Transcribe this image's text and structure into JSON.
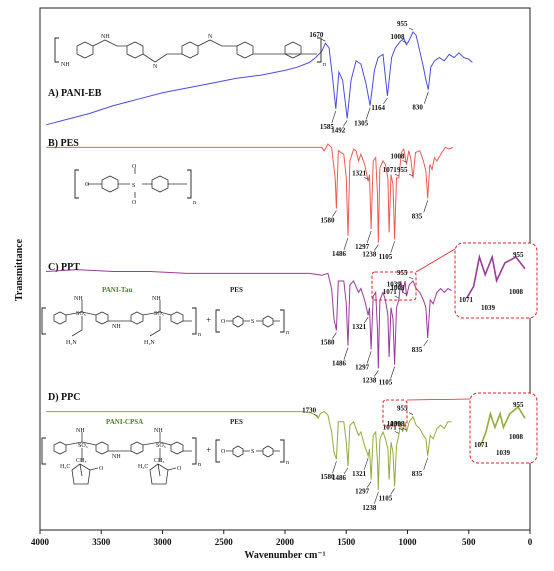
{
  "chart_data": {
    "type": "line",
    "xlabel": "Wavenumber cm⁻¹",
    "ylabel": "Transmittance",
    "xlim": [
      4000,
      0
    ],
    "x_ticks": [
      4000,
      3500,
      3000,
      2500,
      2000,
      1500,
      1000,
      500,
      0
    ],
    "x_reversed": true,
    "grid": false,
    "series": [
      {
        "name": "A) PANI-EB",
        "color": "#4a4ee0",
        "peaks": [
          1670,
          1585,
          1492,
          1305,
          1164,
          1008,
          955,
          830
        ],
        "points": [
          [
            3950,
            2
          ],
          [
            3800,
            5
          ],
          [
            3600,
            9
          ],
          [
            3400,
            14
          ],
          [
            3200,
            18
          ],
          [
            3000,
            22
          ],
          [
            2800,
            25
          ],
          [
            2600,
            28
          ],
          [
            2400,
            31
          ],
          [
            2200,
            33
          ],
          [
            2000,
            36
          ],
          [
            1900,
            38
          ],
          [
            1800,
            41
          ],
          [
            1750,
            44
          ],
          [
            1700,
            48
          ],
          [
            1670,
            53
          ],
          [
            1640,
            50
          ],
          [
            1610,
            30
          ],
          [
            1585,
            12
          ],
          [
            1560,
            35
          ],
          [
            1530,
            30
          ],
          [
            1492,
            6
          ],
          [
            1460,
            30
          ],
          [
            1420,
            42
          ],
          [
            1380,
            40
          ],
          [
            1340,
            28
          ],
          [
            1305,
            14
          ],
          [
            1270,
            36
          ],
          [
            1240,
            44
          ],
          [
            1200,
            46
          ],
          [
            1164,
            20
          ],
          [
            1130,
            44
          ],
          [
            1100,
            50
          ],
          [
            1060,
            54
          ],
          [
            1030,
            56
          ],
          [
            1008,
            52
          ],
          [
            985,
            55
          ],
          [
            955,
            60
          ],
          [
            930,
            58
          ],
          [
            900,
            48
          ],
          [
            870,
            38
          ],
          [
            850,
            30
          ],
          [
            830,
            24
          ],
          [
            810,
            38
          ],
          [
            780,
            42
          ],
          [
            740,
            44
          ],
          [
            700,
            42
          ],
          [
            660,
            46
          ],
          [
            620,
            44
          ],
          [
            580,
            47
          ],
          [
            540,
            44
          ],
          [
            500,
            43
          ],
          [
            470,
            41
          ]
        ]
      },
      {
        "name": "B) PES",
        "color": "#ee5b54",
        "peaks": [
          1580,
          1486,
          1321,
          1297,
          1238,
          1105,
          1071,
          1008,
          955,
          835
        ],
        "points": [
          [
            3950,
            58
          ],
          [
            3000,
            58
          ],
          [
            2000,
            58
          ],
          [
            1800,
            58
          ],
          [
            1700,
            58
          ],
          [
            1680,
            56
          ],
          [
            1650,
            60
          ],
          [
            1620,
            58
          ],
          [
            1590,
            40
          ],
          [
            1580,
            22
          ],
          [
            1565,
            56
          ],
          [
            1520,
            54
          ],
          [
            1500,
            40
          ],
          [
            1486,
            6
          ],
          [
            1470,
            50
          ],
          [
            1440,
            57
          ],
          [
            1420,
            56
          ],
          [
            1400,
            50
          ],
          [
            1380,
            54
          ],
          [
            1350,
            48
          ],
          [
            1321,
            38
          ],
          [
            1310,
            42
          ],
          [
            1297,
            10
          ],
          [
            1280,
            50
          ],
          [
            1260,
            52
          ],
          [
            1245,
            30
          ],
          [
            1238,
            2
          ],
          [
            1225,
            46
          ],
          [
            1200,
            50
          ],
          [
            1180,
            48
          ],
          [
            1160,
            40
          ],
          [
            1150,
            8
          ],
          [
            1135,
            42
          ],
          [
            1118,
            36
          ],
          [
            1105,
            4
          ],
          [
            1090,
            40
          ],
          [
            1071,
            40
          ],
          [
            1050,
            55
          ],
          [
            1030,
            57
          ],
          [
            1008,
            48
          ],
          [
            990,
            56
          ],
          [
            975,
            52
          ],
          [
            955,
            40
          ],
          [
            935,
            55
          ],
          [
            900,
            56
          ],
          [
            870,
            50
          ],
          [
            850,
            44
          ],
          [
            835,
            28
          ],
          [
            818,
            48
          ],
          [
            800,
            45
          ],
          [
            780,
            52
          ],
          [
            760,
            50
          ],
          [
            720,
            55
          ],
          [
            690,
            58
          ],
          [
            660,
            57
          ],
          [
            630,
            58
          ]
        ]
      },
      {
        "name": "C) PPT",
        "color": "#9a3a9a",
        "peaks": [
          1580,
          1486,
          1321,
          1297,
          1238,
          1105,
          1071,
          1039,
          1008,
          955,
          835
        ],
        "points": [
          [
            3950,
            55
          ],
          [
            3700,
            56
          ],
          [
            3400,
            55
          ],
          [
            3100,
            55
          ],
          [
            2800,
            54
          ],
          [
            2500,
            54
          ],
          [
            2200,
            54
          ],
          [
            2000,
            54
          ],
          [
            1800,
            54
          ],
          [
            1700,
            53
          ],
          [
            1650,
            54
          ],
          [
            1620,
            46
          ],
          [
            1600,
            30
          ],
          [
            1580,
            24
          ],
          [
            1565,
            50
          ],
          [
            1520,
            50
          ],
          [
            1500,
            38
          ],
          [
            1486,
            16
          ],
          [
            1470,
            48
          ],
          [
            1440,
            50
          ],
          [
            1400,
            44
          ],
          [
            1380,
            46
          ],
          [
            1350,
            40
          ],
          [
            1321,
            32
          ],
          [
            1310,
            36
          ],
          [
            1297,
            14
          ],
          [
            1280,
            42
          ],
          [
            1260,
            44
          ],
          [
            1245,
            24
          ],
          [
            1238,
            4
          ],
          [
            1225,
            40
          ],
          [
            1200,
            44
          ],
          [
            1180,
            40
          ],
          [
            1160,
            32
          ],
          [
            1150,
            10
          ],
          [
            1135,
            36
          ],
          [
            1118,
            30
          ],
          [
            1105,
            6
          ],
          [
            1090,
            36
          ],
          [
            1071,
            40
          ],
          [
            1055,
            50
          ],
          [
            1039,
            44
          ],
          [
            1020,
            50
          ],
          [
            1008,
            42
          ],
          [
            985,
            48
          ],
          [
            955,
            50
          ],
          [
            930,
            46
          ],
          [
            900,
            44
          ],
          [
            870,
            40
          ],
          [
            850,
            36
          ],
          [
            835,
            20
          ],
          [
            815,
            40
          ],
          [
            790,
            38
          ],
          [
            760,
            44
          ],
          [
            730,
            46
          ],
          [
            700,
            44
          ],
          [
            670,
            46
          ],
          [
            640,
            45
          ]
        ]
      },
      {
        "name": "D) PPC",
        "color": "#93ac3d",
        "peaks": [
          1730,
          1580,
          1486,
          1321,
          1297,
          1238,
          1105,
          1071,
          1039,
          1008,
          955,
          835
        ],
        "points": [
          [
            3950,
            52
          ],
          [
            3700,
            52
          ],
          [
            3400,
            52
          ],
          [
            3100,
            52
          ],
          [
            2800,
            52
          ],
          [
            2500,
            52
          ],
          [
            2200,
            52
          ],
          [
            2000,
            52
          ],
          [
            1850,
            52
          ],
          [
            1780,
            51
          ],
          [
            1750,
            50
          ],
          [
            1730,
            48
          ],
          [
            1710,
            51
          ],
          [
            1680,
            52
          ],
          [
            1650,
            50
          ],
          [
            1620,
            40
          ],
          [
            1600,
            28
          ],
          [
            1580,
            24
          ],
          [
            1565,
            46
          ],
          [
            1520,
            46
          ],
          [
            1500,
            34
          ],
          [
            1486,
            20
          ],
          [
            1470,
            44
          ],
          [
            1440,
            46
          ],
          [
            1400,
            38
          ],
          [
            1380,
            40
          ],
          [
            1350,
            32
          ],
          [
            1321,
            26
          ],
          [
            1310,
            30
          ],
          [
            1297,
            12
          ],
          [
            1280,
            38
          ],
          [
            1260,
            40
          ],
          [
            1245,
            22
          ],
          [
            1238,
            6
          ],
          [
            1225,
            36
          ],
          [
            1200,
            40
          ],
          [
            1180,
            36
          ],
          [
            1160,
            30
          ],
          [
            1150,
            12
          ],
          [
            1135,
            34
          ],
          [
            1118,
            28
          ],
          [
            1105,
            8
          ],
          [
            1090,
            32
          ],
          [
            1071,
            38
          ],
          [
            1055,
            46
          ],
          [
            1039,
            40
          ],
          [
            1020,
            46
          ],
          [
            1008,
            40
          ],
          [
            985,
            46
          ],
          [
            955,
            49
          ],
          [
            930,
            44
          ],
          [
            900,
            42
          ],
          [
            870,
            38
          ],
          [
            850,
            36
          ],
          [
            835,
            26
          ],
          [
            815,
            38
          ],
          [
            790,
            36
          ],
          [
            760,
            42
          ],
          [
            730,
            44
          ],
          [
            700,
            42
          ],
          [
            670,
            46
          ],
          [
            640,
            46
          ]
        ]
      }
    ],
    "insets": [
      {
        "series": "C) PPT",
        "peaks": [
          1071,
          1039,
          1008,
          955
        ]
      },
      {
        "series": "D) PPC",
        "peaks": [
          1071,
          1039,
          1008,
          955
        ]
      }
    ],
    "structures": [
      {
        "panel": "A) PANI-EB",
        "labels": [
          "NH",
          "NH",
          "N",
          "N",
          "n"
        ]
      },
      {
        "panel": "B) PES",
        "labels": [
          "O",
          "S",
          "O",
          "O",
          "n"
        ]
      },
      {
        "panel": "C) PPT",
        "labels": [
          "PANI-Tau",
          "PES",
          "NH",
          "SO₃",
          "NH",
          "H₂N",
          "n",
          "+",
          "O",
          "S",
          "n"
        ]
      },
      {
        "panel": "D) PPC",
        "labels": [
          "PANI-CPSA",
          "PES",
          "NH",
          "SO₃",
          "CH₃",
          "H₃C",
          "O",
          "n",
          "+",
          "O",
          "S",
          "n"
        ]
      }
    ]
  }
}
